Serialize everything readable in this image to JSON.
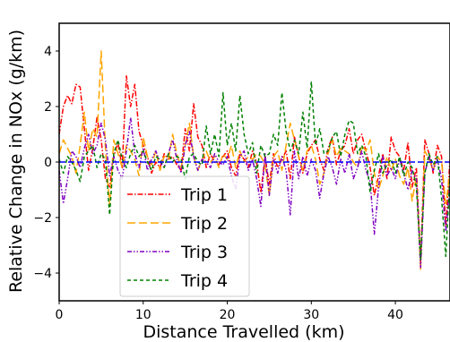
{
  "chart_data": {
    "type": "line",
    "title": "",
    "xlabel": "Distance Travelled (km)",
    "ylabel": "Relative Change in NOx (g/km)",
    "xlim": [
      0,
      46.5
    ],
    "ylim": [
      -5,
      5
    ],
    "xticks": [
      0,
      10,
      20,
      30,
      40
    ],
    "yticks": [
      -4,
      -2,
      0,
      2,
      4
    ],
    "grid": false,
    "legend": "center-left",
    "baseline": {
      "y": 0,
      "color": "#0000ff",
      "style": "dashed"
    },
    "series": [
      {
        "name": "Trip 1",
        "color": "#ff0000",
        "dash": "dash-dot",
        "x": [
          0,
          0.5,
          1,
          1.5,
          2,
          2.5,
          3,
          3.5,
          4,
          4.5,
          5,
          5.5,
          6,
          6.5,
          7,
          7.5,
          8,
          8.5,
          9,
          9.5,
          10,
          10.5,
          11,
          11.5,
          12,
          12.5,
          13,
          13.5,
          14,
          14.5,
          15,
          15.5,
          16,
          16.5,
          17,
          17.5,
          18,
          18.5,
          19,
          19.5,
          20,
          20.5,
          21,
          21.5,
          22,
          22.5,
          23,
          23.5,
          24,
          24.5,
          25,
          25.5,
          26,
          26.5,
          27,
          27.5,
          28,
          28.5,
          29,
          29.5,
          30,
          30.5,
          31,
          31.5,
          32,
          32.5,
          33,
          33.5,
          34,
          34.5,
          35,
          35.5,
          36,
          36.5,
          37,
          37.5,
          38,
          38.5,
          39,
          39.5,
          40,
          40.5,
          41,
          41.5,
          42,
          42.5,
          43,
          43.5,
          44,
          44.5,
          45,
          45.5,
          46,
          46.5
        ],
        "y": [
          1.0,
          2.0,
          2.4,
          2.1,
          2.8,
          2.7,
          1.2,
          -0.3,
          0.5,
          1.6,
          0.8,
          -0.6,
          -0.9,
          0.2,
          0.7,
          -0.2,
          3.1,
          2.0,
          2.8,
          1.1,
          0.6,
          0.2,
          -0.4,
          0.0,
          -0.2,
          0.3,
          0.1,
          0.2,
          -0.1,
          -0.3,
          1.2,
          0.4,
          2.1,
          0.9,
          0.6,
          -0.2,
          0.3,
          0.0,
          -0.1,
          0.2,
          0.4,
          -0.2,
          -0.5,
          0.3,
          0.1,
          -0.2,
          0.4,
          0.0,
          -1.1,
          0.2,
          -0.8,
          0.3,
          -0.2,
          0.1,
          0.4,
          -0.6,
          0.9,
          0.2,
          -0.4,
          0.3,
          0.6,
          0.8,
          0.1,
          -0.3,
          0.5,
          0.9,
          -0.1,
          0.4,
          0.6,
          1.2,
          0.3,
          0.8,
          1.0,
          0.4,
          -0.2,
          -1.2,
          -0.5,
          0.3,
          -0.6,
          0.9,
          0.4,
          0.2,
          -0.3,
          0.7,
          -0.9,
          -0.2,
          -3.6,
          0.8,
          0.3,
          -0.4,
          0.6,
          0.2,
          -2.3,
          0.1
        ]
      },
      {
        "name": "Trip 2",
        "color": "#ffa500",
        "dash": "long-dash",
        "x": [
          0,
          0.5,
          1,
          1.5,
          2,
          2.5,
          3,
          3.5,
          4,
          4.5,
          5,
          5.5,
          6,
          6.5,
          7,
          7.5,
          8,
          8.5,
          9,
          9.5,
          10,
          10.5,
          11,
          11.5,
          12,
          12.5,
          13,
          13.5,
          14,
          14.5,
          15,
          15.5,
          16,
          16.5,
          17,
          17.5,
          18,
          18.5,
          19,
          19.5,
          20,
          20.5,
          21,
          21.5,
          22,
          22.5,
          23,
          23.5,
          24,
          24.5,
          25,
          25.5,
          26,
          26.5,
          27,
          27.5,
          28,
          28.5,
          29,
          29.5,
          30,
          30.5,
          31,
          31.5,
          32,
          32.5,
          33,
          33.5,
          34,
          34.5,
          35,
          35.5,
          36,
          36.5,
          37,
          37.5,
          38,
          38.5,
          39,
          39.5,
          40,
          40.5,
          41,
          41.5,
          42,
          42.5,
          43,
          43.5,
          44,
          44.5,
          45,
          45.5,
          46,
          46.5
        ],
        "y": [
          0.3,
          0.8,
          0.5,
          0.2,
          -0.4,
          0.6,
          1.8,
          0.4,
          1.2,
          0.9,
          4.0,
          0.5,
          -1.6,
          0.8,
          0.3,
          -0.2,
          0.6,
          0.4,
          0.1,
          -0.5,
          0.9,
          0.2,
          -0.1,
          0.4,
          -0.3,
          0.2,
          0.1,
          1.0,
          0.3,
          -0.2,
          0.6,
          1.4,
          0.2,
          -0.3,
          0.1,
          0.4,
          0.0,
          0.2,
          -0.2,
          0.3,
          0.1,
          0.6,
          -0.2,
          0.4,
          0.0,
          0.2,
          0.1,
          0.3,
          0.2,
          -0.1,
          -1.2,
          0.2,
          0.4,
          -0.3,
          0.6,
          1.4,
          0.8,
          0.2,
          -0.3,
          0.4,
          0.6,
          0.1,
          -0.8,
          -0.4,
          0.3,
          0.8,
          0.2,
          0.5,
          0.4,
          0.3,
          0.0,
          -0.2,
          0.6,
          0.4,
          0.8,
          -0.4,
          -1.0,
          -0.5,
          0.2,
          -0.3,
          0.1,
          -0.5,
          -0.8,
          -0.2,
          -1.4,
          -0.5,
          -3.9,
          0.4,
          0.1,
          -0.3,
          0.2,
          0.0,
          -1.5,
          -0.4
        ]
      },
      {
        "name": "Trip 3",
        "color": "#8000c0",
        "dash": "dash-dot-dot",
        "x": [
          0,
          0.5,
          1,
          1.5,
          2,
          2.5,
          3,
          3.5,
          4,
          4.5,
          5,
          5.5,
          6,
          6.5,
          7,
          7.5,
          8,
          8.5,
          9,
          9.5,
          10,
          10.5,
          11,
          11.5,
          12,
          12.5,
          13,
          13.5,
          14,
          14.5,
          15,
          15.5,
          16,
          16.5,
          17,
          17.5,
          18,
          18.5,
          19,
          19.5,
          20,
          20.5,
          21,
          21.5,
          22,
          22.5,
          23,
          23.5,
          24,
          24.5,
          25,
          25.5,
          26,
          26.5,
          27,
          27.5,
          28,
          28.5,
          29,
          29.5,
          30,
          30.5,
          31,
          31.5,
          32,
          32.5,
          33,
          33.5,
          34,
          34.5,
          35,
          35.5,
          36,
          36.5,
          37,
          37.5,
          38,
          38.5,
          39,
          39.5,
          40,
          40.5,
          41,
          41.5,
          42,
          42.5,
          43,
          43.5,
          44,
          44.5,
          45,
          45.5,
          46,
          46.5
        ],
        "y": [
          -0.3,
          -1.5,
          -0.6,
          0.4,
          0.2,
          -0.2,
          0.5,
          1.0,
          0.3,
          0.6,
          1.4,
          0.8,
          -0.5,
          0.2,
          -0.3,
          -0.6,
          0.4,
          1.6,
          0.3,
          -0.2,
          0.5,
          -0.3,
          0.1,
          0.4,
          0.0,
          -0.2,
          0.3,
          0.8,
          0.1,
          -0.4,
          0.6,
          1.1,
          0.2,
          -0.3,
          0.1,
          0.0,
          -0.2,
          0.3,
          0.0,
          -0.1,
          0.2,
          -0.5,
          -1.0,
          0.2,
          0.4,
          -0.3,
          0.1,
          -0.6,
          -1.6,
          0.3,
          -1.2,
          0.1,
          -0.4,
          0.2,
          -0.3,
          -1.9,
          0.4,
          -0.6,
          0.2,
          -0.5,
          0.1,
          -0.3,
          -1.3,
          -0.4,
          0.2,
          -0.2,
          -0.8,
          0.1,
          -0.4,
          0.3,
          -0.6,
          -0.2,
          0.4,
          -0.3,
          -0.7,
          -2.6,
          -0.9,
          0.2,
          -0.5,
          -0.2,
          -0.6,
          0.1,
          -0.4,
          -1.0,
          -0.3,
          -0.6,
          -3.8,
          -0.4,
          0.2,
          -0.3,
          0.1,
          -0.6,
          -2.5,
          -0.8
        ]
      },
      {
        "name": "Trip 4",
        "color": "#008000",
        "dash": "dashed",
        "x": [
          0,
          0.5,
          1,
          1.5,
          2,
          2.5,
          3,
          3.5,
          4,
          4.5,
          5,
          5.5,
          6,
          6.5,
          7,
          7.5,
          8,
          8.5,
          9,
          9.5,
          10,
          10.5,
          11,
          11.5,
          12,
          12.5,
          13,
          13.5,
          14,
          14.5,
          15,
          15.5,
          16,
          16.5,
          17,
          17.5,
          18,
          18.5,
          19,
          19.5,
          20,
          20.5,
          21,
          21.5,
          22,
          22.5,
          23,
          23.5,
          24,
          24.5,
          25,
          25.5,
          26,
          26.5,
          27,
          27.5,
          28,
          28.5,
          29,
          29.5,
          30,
          30.5,
          31,
          31.5,
          32,
          32.5,
          33,
          33.5,
          34,
          34.5,
          35,
          35.5,
          36,
          36.5,
          37,
          37.5,
          38,
          38.5,
          39,
          39.5,
          40,
          40.5,
          41,
          41.5,
          42,
          42.5,
          43,
          43.5,
          44,
          44.5,
          45,
          45.5,
          46,
          46.5
        ],
        "y": [
          0.1,
          -0.4,
          0.2,
          0.0,
          -0.3,
          -0.7,
          0.2,
          0.4,
          0.6,
          -0.2,
          0.3,
          0.1,
          -1.9,
          0.3,
          0.8,
          0.1,
          -0.2,
          0.3,
          0.6,
          0.2,
          0.4,
          0.0,
          -0.3,
          0.2,
          0.1,
          -0.2,
          0.3,
          0.0,
          0.2,
          0.1,
          -0.6,
          0.2,
          0.3,
          0.0,
          -0.1,
          1.3,
          0.3,
          1.0,
          0.2,
          2.5,
          0.6,
          1.4,
          0.4,
          2.4,
          1.0,
          0.3,
          0.7,
          -0.4,
          0.6,
          0.2,
          0.3,
          1.0,
          0.6,
          2.5,
          1.1,
          0.4,
          0.8,
          0.3,
          1.8,
          0.5,
          2.9,
          0.6,
          1.2,
          0.3,
          0.4,
          0.9,
          1.1,
          0.2,
          1.0,
          1.5,
          1.4,
          0.3,
          0.6,
          0.2,
          -1.1,
          -0.3,
          0.3,
          -0.4,
          -0.1,
          0.1,
          -0.4,
          0.2,
          -0.5,
          0.0,
          -0.2,
          -0.9,
          -3.5,
          -0.4,
          0.3,
          -0.1,
          0.2,
          -1.3,
          -3.4,
          -0.5
        ]
      }
    ]
  }
}
